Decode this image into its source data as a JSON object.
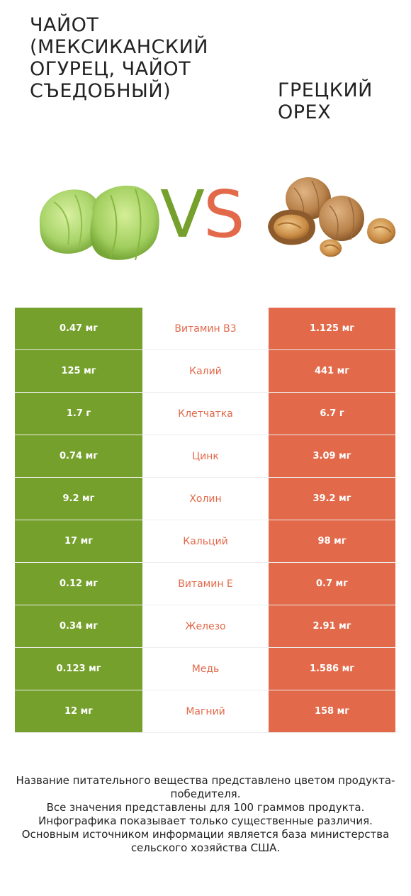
{
  "left_product": {
    "title": "Чайот (мексиканский огурец, чайот съедобный)",
    "color": "#75a02c",
    "image": "chayote-image"
  },
  "right_product": {
    "title": "Грецкий орех",
    "color": "#e2694a",
    "image": "walnut-image"
  },
  "vs": {
    "v": "V",
    "s": "S"
  },
  "rows": [
    {
      "left": "0.47 мг",
      "nutrient": "Витамин B3",
      "right": "1.125 мг"
    },
    {
      "left": "125 мг",
      "nutrient": "Калий",
      "right": "441 мг"
    },
    {
      "left": "1.7 г",
      "nutrient": "Клетчатка",
      "right": "6.7 г"
    },
    {
      "left": "0.74 мг",
      "nutrient": "Цинк",
      "right": "3.09 мг"
    },
    {
      "left": "9.2 мг",
      "nutrient": "Холин",
      "right": "39.2 мг"
    },
    {
      "left": "17 мг",
      "nutrient": "Кальций",
      "right": "98 мг"
    },
    {
      "left": "0.12 мг",
      "nutrient": "Витамин E",
      "right": "0.7 мг"
    },
    {
      "left": "0.34 мг",
      "nutrient": "Железо",
      "right": "2.91 мг"
    },
    {
      "left": "0.123 мг",
      "nutrient": "Медь",
      "right": "1.586 мг"
    },
    {
      "left": "12 мг",
      "nutrient": "Магний",
      "right": "158 мг"
    }
  ],
  "footer": {
    "line1": "Название питательного вещества представлено цветом продукта-победителя.",
    "line2": "Все значения представлены для 100 граммов продукта.",
    "line3": "Инфографика показывает только существенные различия.",
    "line4": "Основным источником информации является база министерства сельского хозяйства США."
  }
}
